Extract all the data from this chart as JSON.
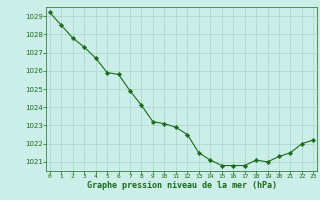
{
  "x": [
    0,
    1,
    2,
    3,
    4,
    5,
    6,
    7,
    8,
    9,
    10,
    11,
    12,
    13,
    14,
    15,
    16,
    17,
    18,
    19,
    20,
    21,
    22,
    23
  ],
  "y": [
    1029.2,
    1028.5,
    1027.8,
    1027.3,
    1026.7,
    1025.9,
    1025.8,
    1024.9,
    1024.1,
    1023.2,
    1023.1,
    1022.9,
    1022.5,
    1021.5,
    1021.1,
    1020.8,
    1020.8,
    1020.8,
    1021.1,
    1021.0,
    1021.3,
    1021.5,
    1022.0,
    1022.2
  ],
  "ylim": [
    1020.5,
    1029.5
  ],
  "yticks": [
    1021,
    1022,
    1023,
    1024,
    1025,
    1026,
    1027,
    1028,
    1029
  ],
  "xlim": [
    -0.3,
    23.3
  ],
  "xticks": [
    0,
    1,
    2,
    3,
    4,
    5,
    6,
    7,
    8,
    9,
    10,
    11,
    12,
    13,
    14,
    15,
    16,
    17,
    18,
    19,
    20,
    21,
    22,
    23
  ],
  "xlabel": "Graphe pression niveau de la mer (hPa)",
  "line_color": "#1a6b1a",
  "marker_color": "#1a6b1a",
  "bg_color": "#cceee8",
  "grid_color": "#aad4cc",
  "axis_color": "#1a6b1a",
  "tick_label_color": "#1a6b1a",
  "xlabel_color": "#1a6b1a"
}
